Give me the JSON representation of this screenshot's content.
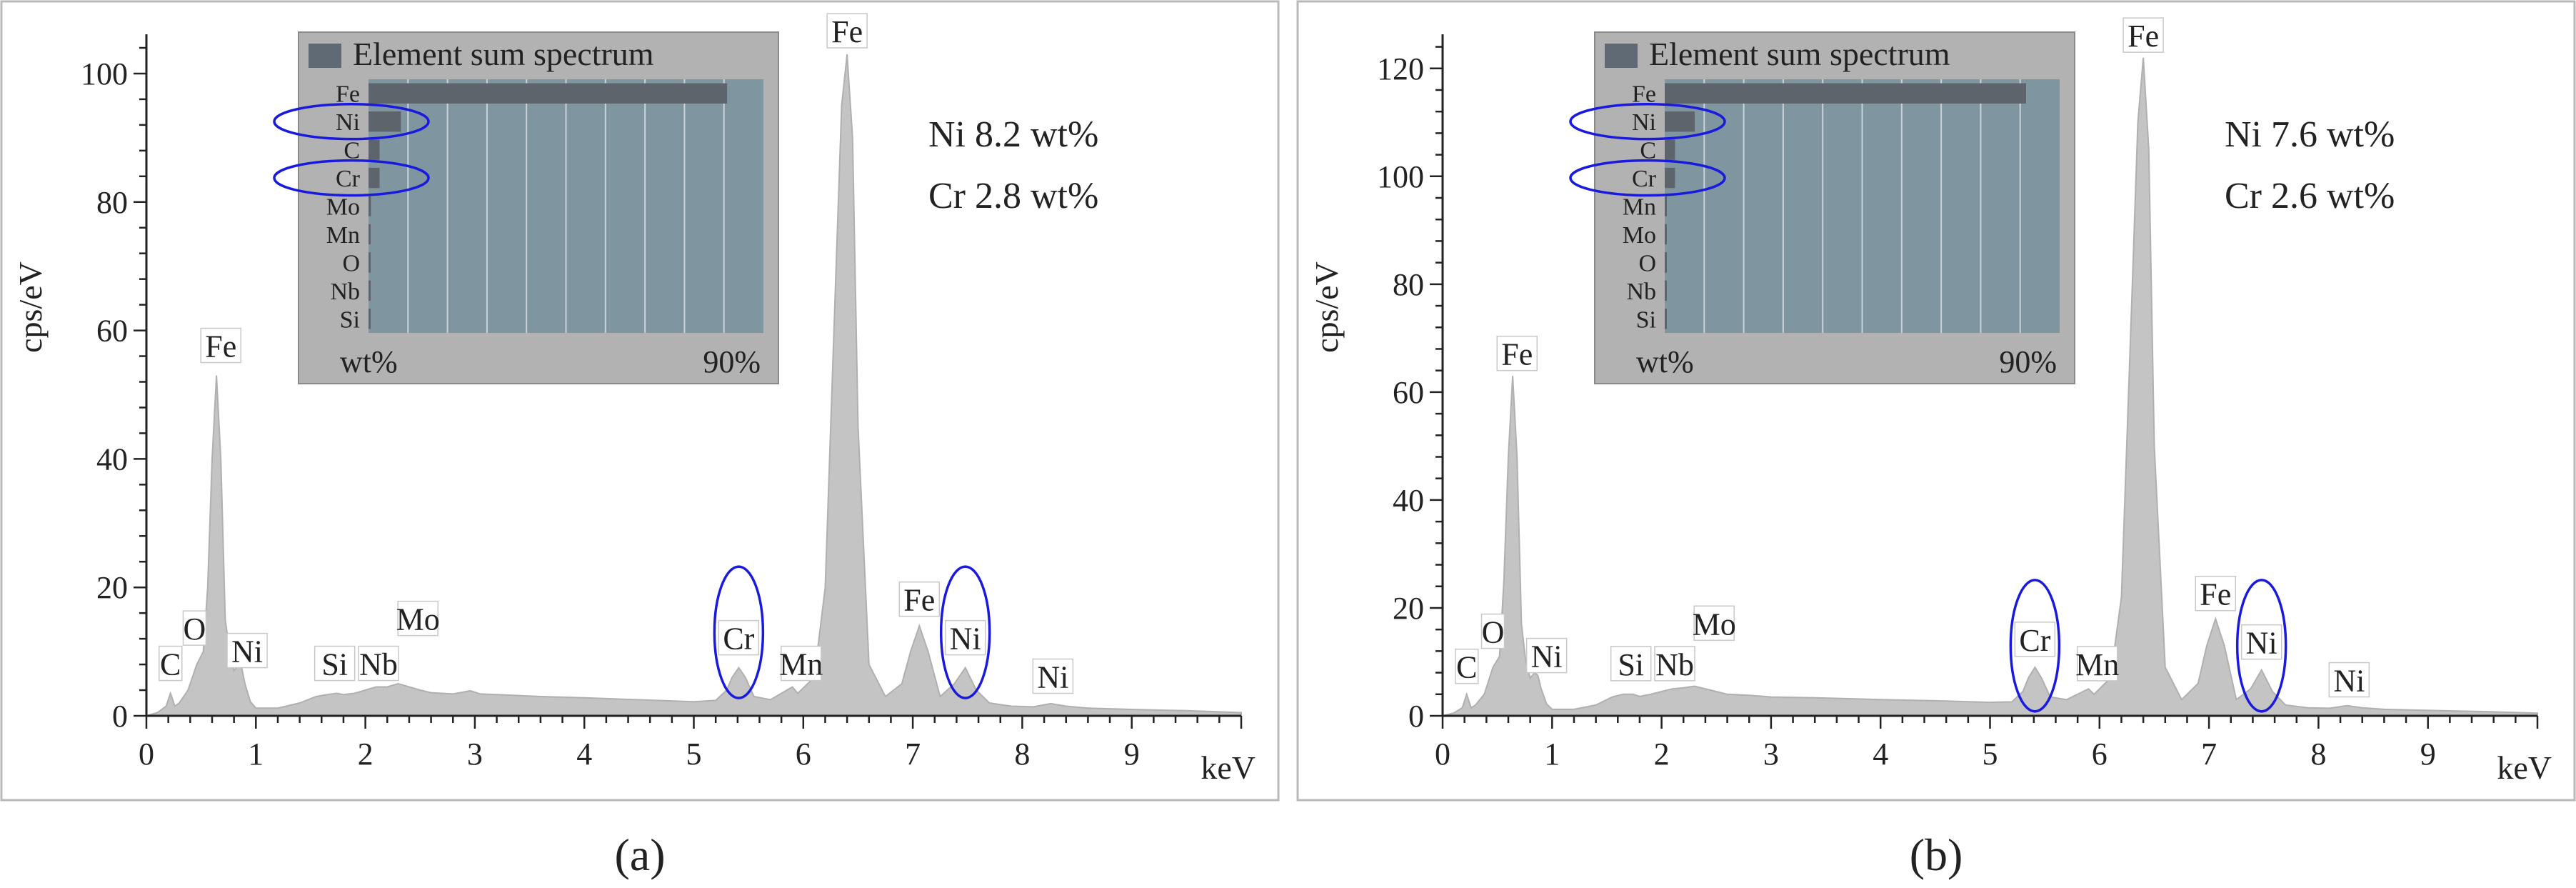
{
  "chart_data": [
    {
      "type": "area",
      "panel_label": "(a)",
      "xlabel": "keV",
      "ylabel": "cps/eV",
      "xlim": [
        0,
        10
      ],
      "ylim": [
        0,
        105
      ],
      "x_ticks": [
        0,
        1,
        2,
        3,
        4,
        5,
        6,
        7,
        8,
        9
      ],
      "y_ticks": [
        0,
        20,
        40,
        60,
        80,
        100
      ],
      "fill_color": "#c4c4c4",
      "highlight_color": "#1a1adf",
      "composition": [
        "Ni 8.2 wt%",
        "Cr 2.8 wt%"
      ],
      "spectrum": {
        "x": [
          0,
          0.1,
          0.18,
          0.22,
          0.26,
          0.3,
          0.38,
          0.46,
          0.52,
          0.56,
          0.6,
          0.64,
          0.68,
          0.72,
          0.76,
          0.8,
          0.84,
          0.87,
          0.9,
          0.95,
          1.0,
          1.2,
          1.4,
          1.55,
          1.65,
          1.74,
          1.8,
          1.9,
          2.0,
          2.1,
          2.2,
          2.3,
          2.4,
          2.5,
          2.6,
          2.8,
          2.96,
          3.05,
          3.2,
          3.6,
          4.0,
          4.5,
          5.0,
          5.2,
          5.3,
          5.35,
          5.41,
          5.47,
          5.55,
          5.7,
          5.85,
          5.9,
          5.95,
          6.1,
          6.2,
          6.3,
          6.35,
          6.4,
          6.45,
          6.5,
          6.6,
          6.75,
          6.9,
          6.98,
          7.06,
          7.14,
          7.25,
          7.38,
          7.48,
          7.58,
          7.7,
          7.9,
          8.1,
          8.26,
          8.4,
          8.6,
          9.0,
          9.5,
          10.0
        ],
        "y": [
          0,
          0.5,
          1.5,
          3.5,
          1.5,
          2,
          4,
          8,
          10,
          20,
          40,
          53,
          40,
          15,
          10,
          7,
          8,
          7.5,
          5,
          2.2,
          1.2,
          1.2,
          2,
          3,
          3.3,
          3.5,
          3.3,
          3.5,
          4,
          4.5,
          4.5,
          5,
          4.5,
          4,
          3.6,
          3.4,
          3.9,
          3.4,
          3.3,
          3,
          2.8,
          2.5,
          2.2,
          2.4,
          4,
          6,
          7.5,
          6,
          3,
          2.5,
          4,
          4.5,
          3.5,
          6,
          20,
          70,
          95,
          103,
          90,
          45,
          8,
          3,
          5,
          10,
          14,
          10,
          3,
          5,
          7.5,
          4,
          2,
          1.5,
          1.4,
          1.9,
          1.5,
          1.2,
          1.0,
          0.8,
          0.5
        ]
      },
      "peak_labels": [
        {
          "text": "C",
          "x": 0.22,
          "y": 5.5
        },
        {
          "text": "O",
          "x": 0.44,
          "y": 11
        },
        {
          "text": "Ni",
          "x": 0.92,
          "y": 7.5
        },
        {
          "text": "Si",
          "x": 1.72,
          "y": 5.5
        },
        {
          "text": "Nb",
          "x": 2.12,
          "y": 5.5
        },
        {
          "text": "Mo",
          "x": 2.48,
          "y": 12.5
        },
        {
          "text": "Cr",
          "x": 5.41,
          "y": 9.5
        },
        {
          "text": "Mn",
          "x": 5.98,
          "y": 5.5
        },
        {
          "text": "Fe",
          "x": 0.68,
          "y": 55
        },
        {
          "text": "Fe",
          "x": 6.4,
          "y": 104
        },
        {
          "text": "Fe",
          "x": 7.06,
          "y": 15.5
        },
        {
          "text": "Ni",
          "x": 7.48,
          "y": 9.5
        },
        {
          "text": "Ni",
          "x": 8.28,
          "y": 3.5
        }
      ],
      "highlight_ellipses_keV": [
        5.41,
        7.48
      ],
      "inset": {
        "title": "Element sum spectrum",
        "elements": [
          "Fe",
          "Ni",
          "C",
          "Cr",
          "Mo",
          "Mn",
          "O",
          "Nb",
          "Si"
        ],
        "values": [
          90.8,
          8.2,
          2.8,
          2.8,
          0.6,
          0.5,
          0.3,
          0.2,
          0.2
        ],
        "xlim": [
          0,
          100
        ],
        "x_label_left": "wt%",
        "x_label_right": "90%",
        "highlighted": [
          "Ni",
          "Cr"
        ]
      }
    },
    {
      "type": "area",
      "panel_label": "(b)",
      "xlabel": "keV",
      "ylabel": "cps/eV",
      "xlim": [
        0,
        10
      ],
      "ylim": [
        0,
        125
      ],
      "x_ticks": [
        0,
        1,
        2,
        3,
        4,
        5,
        6,
        7,
        8,
        9
      ],
      "y_ticks": [
        0,
        20,
        40,
        60,
        80,
        100,
        120
      ],
      "fill_color": "#c4c4c4",
      "highlight_color": "#1a1adf",
      "composition": [
        "Ni 7.6 wt%",
        "Cr 2.6 wt%"
      ],
      "spectrum": {
        "x": [
          0,
          0.1,
          0.18,
          0.22,
          0.26,
          0.3,
          0.38,
          0.46,
          0.52,
          0.56,
          0.6,
          0.64,
          0.68,
          0.72,
          0.76,
          0.8,
          0.84,
          0.87,
          0.9,
          0.95,
          1.0,
          1.2,
          1.4,
          1.55,
          1.65,
          1.74,
          1.8,
          1.9,
          2.0,
          2.1,
          2.2,
          2.3,
          2.4,
          2.5,
          2.6,
          2.8,
          3.0,
          3.5,
          4.0,
          4.5,
          5.0,
          5.2,
          5.3,
          5.35,
          5.41,
          5.47,
          5.55,
          5.7,
          5.85,
          5.9,
          5.95,
          6.1,
          6.2,
          6.3,
          6.35,
          6.4,
          6.45,
          6.5,
          6.6,
          6.75,
          6.9,
          6.98,
          7.06,
          7.14,
          7.25,
          7.38,
          7.48,
          7.58,
          7.7,
          7.9,
          8.1,
          8.26,
          8.4,
          8.6,
          9.0,
          9.5,
          10.0
        ],
        "y": [
          0,
          0.5,
          1.5,
          4,
          1.5,
          2,
          4,
          9,
          11,
          25,
          48,
          63,
          48,
          17,
          10,
          7,
          8,
          7.5,
          5,
          2.2,
          1.2,
          1.2,
          2,
          3.5,
          4,
          4,
          3.6,
          4,
          4.5,
          5,
          5.2,
          5.5,
          5,
          4.5,
          4,
          3.8,
          3.5,
          3.3,
          3,
          2.8,
          2.5,
          2.6,
          4.5,
          7,
          9,
          7,
          3.5,
          3,
          4.5,
          5,
          4,
          7,
          22,
          80,
          110,
          122,
          105,
          50,
          9,
          3,
          6,
          13,
          18,
          13,
          3,
          5,
          8.5,
          4.5,
          2,
          1.5,
          1.4,
          1.9,
          1.5,
          1.2,
          1.0,
          0.8,
          0.5
        ]
      },
      "peak_labels": [
        {
          "text": "C",
          "x": 0.22,
          "y": 6
        },
        {
          "text": "O",
          "x": 0.46,
          "y": 12.5
        },
        {
          "text": "Ni",
          "x": 0.95,
          "y": 8
        },
        {
          "text": "Si",
          "x": 1.72,
          "y": 6.5
        },
        {
          "text": "Nb",
          "x": 2.12,
          "y": 6.5
        },
        {
          "text": "Mo",
          "x": 2.48,
          "y": 14
        },
        {
          "text": "Cr",
          "x": 5.41,
          "y": 11
        },
        {
          "text": "Mn",
          "x": 5.98,
          "y": 6.5
        },
        {
          "text": "Fe",
          "x": 0.68,
          "y": 64
        },
        {
          "text": "Fe",
          "x": 6.4,
          "y": 123
        },
        {
          "text": "Fe",
          "x": 7.06,
          "y": 19.5
        },
        {
          "text": "Ni",
          "x": 7.48,
          "y": 10.5
        },
        {
          "text": "Ni",
          "x": 8.28,
          "y": 3.5
        }
      ],
      "highlight_ellipses_keV": [
        5.41,
        7.48
      ],
      "inset": {
        "title": "Element sum spectrum",
        "elements": [
          "Fe",
          "Ni",
          "C",
          "Cr",
          "Mn",
          "Mo",
          "O",
          "Nb",
          "Si"
        ],
        "values": [
          91.5,
          7.6,
          2.6,
          2.6,
          0.5,
          0.5,
          0.3,
          0.2,
          0.2
        ],
        "xlim": [
          0,
          100
        ],
        "x_label_left": "wt%",
        "x_label_right": "90%",
        "highlighted": [
          "Ni",
          "Cr"
        ]
      }
    }
  ]
}
